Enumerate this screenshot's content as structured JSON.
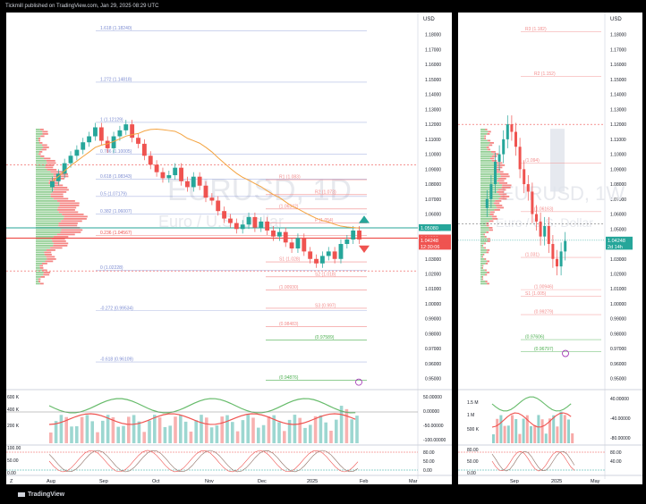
{
  "header": {
    "text": "Tickmill published on TradingView.com, Jan 29, 2025 08:29 UTC"
  },
  "brand": {
    "name": "TradingView"
  },
  "currency": "USD",
  "left": {
    "watermark": "EURUSD, 1D",
    "watermark_sub": "Euro / U.S. Dollar",
    "months": [
      "Aug",
      "Sep",
      "Oct",
      "Nov",
      "Dec",
      "2025",
      "Feb",
      "Mar"
    ],
    "price_ticks": [
      "1.18000",
      "1.17000",
      "1.16000",
      "1.15000",
      "1.14000",
      "1.13000",
      "1.12000",
      "1.11000",
      "1.10000",
      "1.09000",
      "1.08000",
      "1.07000",
      "1.06000",
      "1.05000",
      "1.04000",
      "1.03000",
      "1.02000",
      "1.01000",
      "1.00000",
      "0.99000",
      "0.98000",
      "0.97000",
      "0.96000",
      "0.95000"
    ],
    "fib_labels": [
      "1.618 (1.18240)",
      "1.272 (1.14818)",
      "1 (1.12129)",
      "0.786 (1.10005)",
      "0.618 (1.08343)",
      "0.5 (1.07179)",
      "0.382 (1.06007)",
      "0.236 (1.04567)",
      "0 (1.02228)",
      "-0.272 (0.99534)",
      "-0.618 (0.96109)"
    ],
    "pivot_labels": [
      "R1 (1.083)",
      "R2 (1.073)",
      "(1.06342)",
      "P (1.054)",
      "S1 (1.028)",
      "S2 (1.018)",
      "(1.00930)",
      "S3 (0.997)",
      "(0.98483)",
      "(0.97589)",
      "(0.94876)"
    ],
    "price_boxes": [
      "1.05080",
      "1.04388",
      "1.04248",
      "12:30:06"
    ],
    "vol_ticks": [
      "600 K",
      "400 K",
      "200 K"
    ],
    "vol_right": [
      "50.00000",
      "0.00000",
      "-50.00000",
      "-100.00000"
    ],
    "osc_ticks": [
      "100.00",
      "50.00",
      "0.00"
    ],
    "osc_right": [
      "80.00",
      "50.00",
      "0.00"
    ],
    "timezone_icon": "tz-icon",
    "event_icon": "flag-icon"
  },
  "right": {
    "watermark": "EURUSD, 1W",
    "watermark_sub": "Euro / U.S. Dollar",
    "months": [
      "Sep",
      "2025",
      "May"
    ],
    "price_ticks": [
      "1.18000",
      "1.17000",
      "1.16000",
      "1.15000",
      "1.14000",
      "1.13000",
      "1.12000",
      "1.11000",
      "1.10000",
      "1.09000",
      "1.08000",
      "1.07000",
      "1.06000",
      "1.05000",
      "1.04000",
      "1.03000",
      "1.02000",
      "1.01000",
      "1.00000",
      "0.99000",
      "0.98000",
      "0.97000",
      "0.96000",
      "0.95000"
    ],
    "pivot_labels": [
      "R3 (1.182)",
      "R2 (1.152)",
      "(1.094)",
      "(1.06163)",
      "(1.031)",
      "(1.00946)",
      "S1 (1.005)",
      "(0.99279)",
      "(0.97606)",
      "(0.96797)"
    ],
    "price_boxes": [
      "1.04248",
      "2d 14h"
    ],
    "vol_ticks": [
      "1.5 M",
      "1 M",
      "500 K"
    ],
    "vol_right": [
      "40.00000",
      "-40.00000",
      "-80.00000"
    ],
    "osc_ticks": [
      "80.00",
      "50.00",
      "0.00"
    ],
    "osc_right": [
      "80.00",
      "40.00"
    ]
  },
  "colors": {
    "up": "#26a69a",
    "down": "#ef5350",
    "ma": "#f4a340",
    "fib_blue": "#7b8bd1",
    "pivot_red": "#f28b8b",
    "green_line": "#4caf50"
  },
  "chart_data": [
    {
      "type": "candlestick",
      "title": "EURUSD, 1D",
      "ylim": [
        0.945,
        1.19
      ],
      "x_labels": [
        "Aug",
        "Sep",
        "Oct",
        "Nov",
        "Dec",
        "2025",
        "Feb",
        "Mar"
      ],
      "close_series": [
        1.082,
        1.087,
        1.094,
        1.099,
        1.103,
        1.108,
        1.112,
        1.118,
        1.109,
        1.104,
        1.112,
        1.116,
        1.12,
        1.111,
        1.107,
        1.099,
        1.093,
        1.088,
        1.084,
        1.086,
        1.091,
        1.082,
        1.078,
        1.085,
        1.079,
        1.071,
        1.069,
        1.062,
        1.057,
        1.054,
        1.05,
        1.053,
        1.058,
        1.051,
        1.055,
        1.049,
        1.045,
        1.048,
        1.041,
        1.037,
        1.044,
        1.035,
        1.03,
        1.027,
        1.032,
        1.035,
        1.03,
        1.04,
        1.043,
        1.049,
        1.043
      ],
      "last_price": 1.04248
    },
    {
      "type": "candlestick",
      "title": "EURUSD, 1W",
      "ylim": [
        0.945,
        1.19
      ],
      "x_labels": [
        "Sep",
        "2025",
        "May"
      ],
      "close_series": [
        1.07,
        1.08,
        1.095,
        1.1,
        1.11,
        1.12,
        1.115,
        1.105,
        1.09,
        1.08,
        1.075,
        1.06,
        1.055,
        1.045,
        1.052,
        1.04,
        1.03,
        1.025,
        1.035,
        1.042
      ],
      "last_price": 1.04248
    }
  ]
}
